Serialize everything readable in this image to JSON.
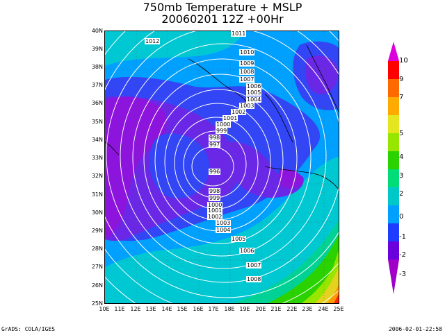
{
  "title_line1": "750mb Temperature + MSLP",
  "title_line2": "20060201 12Z +00Hr",
  "footer_left": "GrADS: COLA/IGES",
  "footer_right": "2006-02-01-22:58",
  "lat_labels": [
    "40N",
    "39N",
    "38N",
    "37N",
    "36N",
    "35N",
    "34N",
    "33N",
    "32N",
    "31N",
    "30N",
    "29N",
    "28N",
    "27N",
    "26N",
    "25N"
  ],
  "lon_labels": [
    "10E",
    "11E",
    "12E",
    "13E",
    "14E",
    "15E",
    "16E",
    "17E",
    "18E",
    "19E",
    "20E",
    "21E",
    "22E",
    "23E",
    "24E",
    "25E"
  ],
  "colorbar_labels": [
    "10",
    "9",
    "7",
    "5",
    "4",
    "3",
    "2",
    "1",
    "0",
    "-1",
    "-2",
    "-3"
  ],
  "colorbar_colors": [
    "#dc00dc",
    "#ff0000",
    "#ff6a00",
    "#ffaa00",
    "#e5e520",
    "#96e600",
    "#2ad200",
    "#00dc78",
    "#00c8c8",
    "#00a0ff",
    "#1e3cff",
    "#6a00dc",
    "#a000c8"
  ],
  "isobar_labels": [
    "1011",
    "1012",
    "1010",
    "1009",
    "1008",
    "1007",
    "1006",
    "1005",
    "1004",
    "1003",
    "1002",
    "1001",
    "1000",
    "999",
    "998",
    "997",
    "996",
    "998",
    "999",
    "1000",
    "1001",
    "1002",
    "1003",
    "1004",
    "1005",
    "1006",
    "1007",
    "1008"
  ],
  "map_colors": {
    "purple": "#8c14dc",
    "violet": "#6a28e6",
    "blue": "#3246f5",
    "lightblue": "#00a0ff",
    "cyan": "#00c8d2",
    "teal": "#00d296",
    "green": "#2ad200",
    "lime": "#96e600",
    "yellow": "#e5d21e",
    "orange": "#ff9a00",
    "red": "#ff2a00"
  }
}
